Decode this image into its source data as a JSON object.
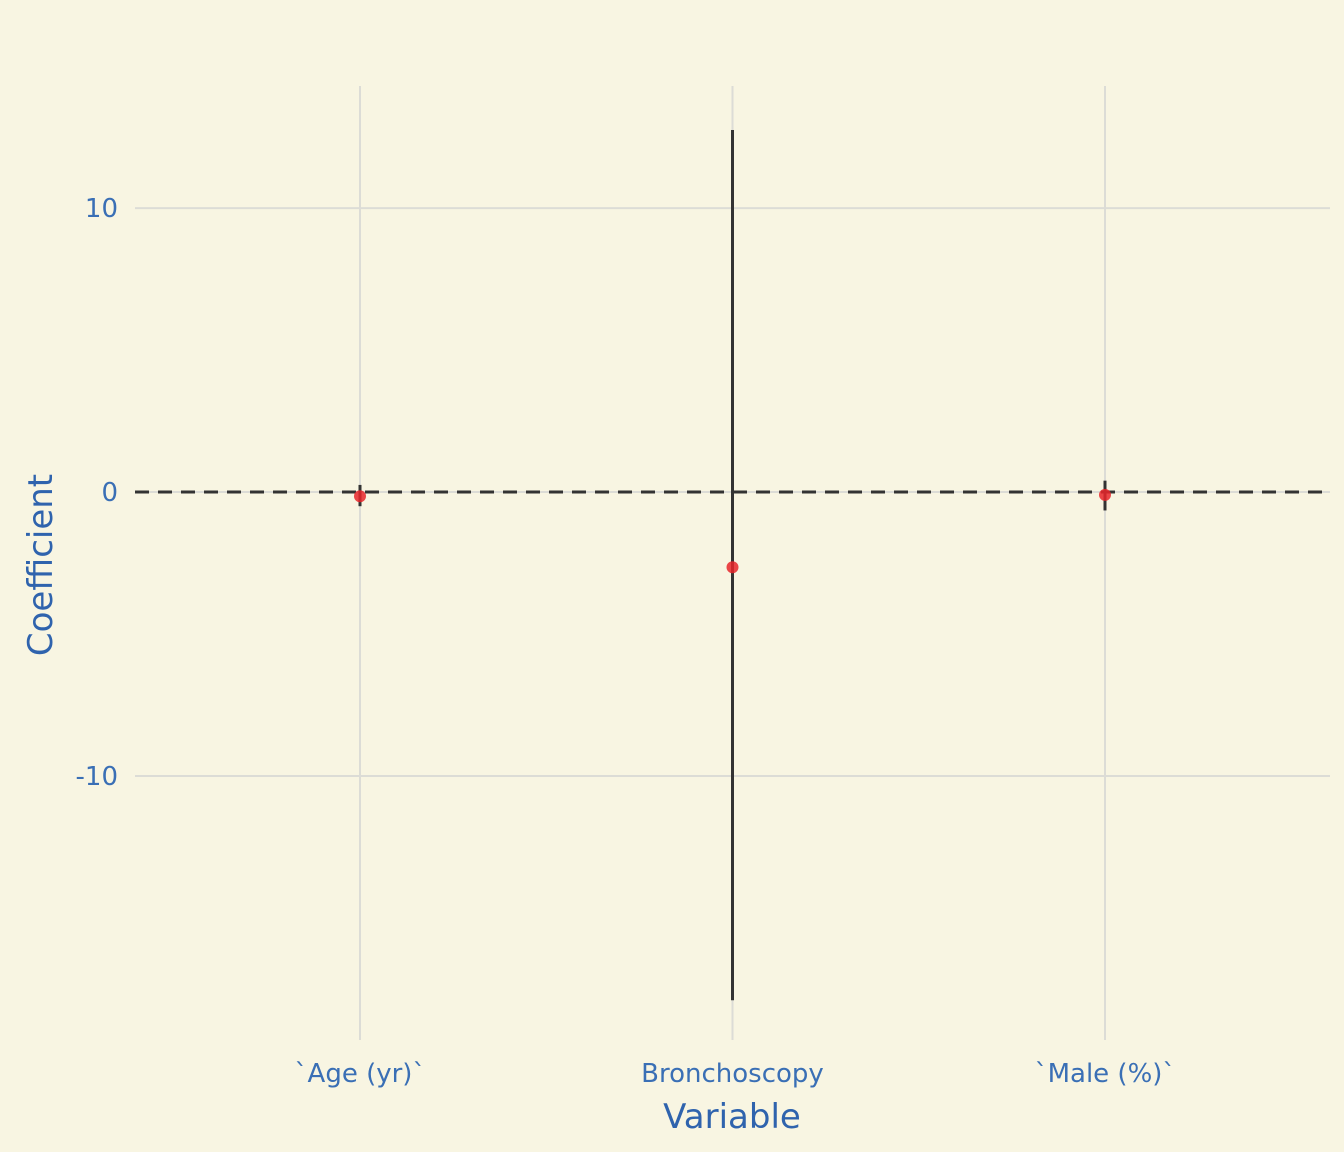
{
  "chart_data": {
    "type": "scatter",
    "title": "",
    "xlabel": "Variable",
    "ylabel": "Coefficient",
    "categories": [
      "`Age (yr)`",
      "Bronchoscopy",
      "`Male (%)`"
    ],
    "series": [
      {
        "estimates": [
          -0.15,
          -2.65,
          -0.1
        ],
        "ci_low": [
          -0.5,
          -17.9,
          -0.65
        ],
        "ci_high": [
          0.25,
          12.75,
          0.4
        ]
      }
    ],
    "y_ticks": [
      -10,
      0,
      10
    ],
    "y_tick_labels": [
      "-10",
      "0",
      "10"
    ],
    "ylim": [
      -19.3,
      14.3
    ],
    "reference_line": 0,
    "grid": true,
    "point_color": "#e8262a",
    "errorbar_color": "#333333",
    "background_color": "#f8f5e2",
    "label_color": "#3a6fb5"
  }
}
